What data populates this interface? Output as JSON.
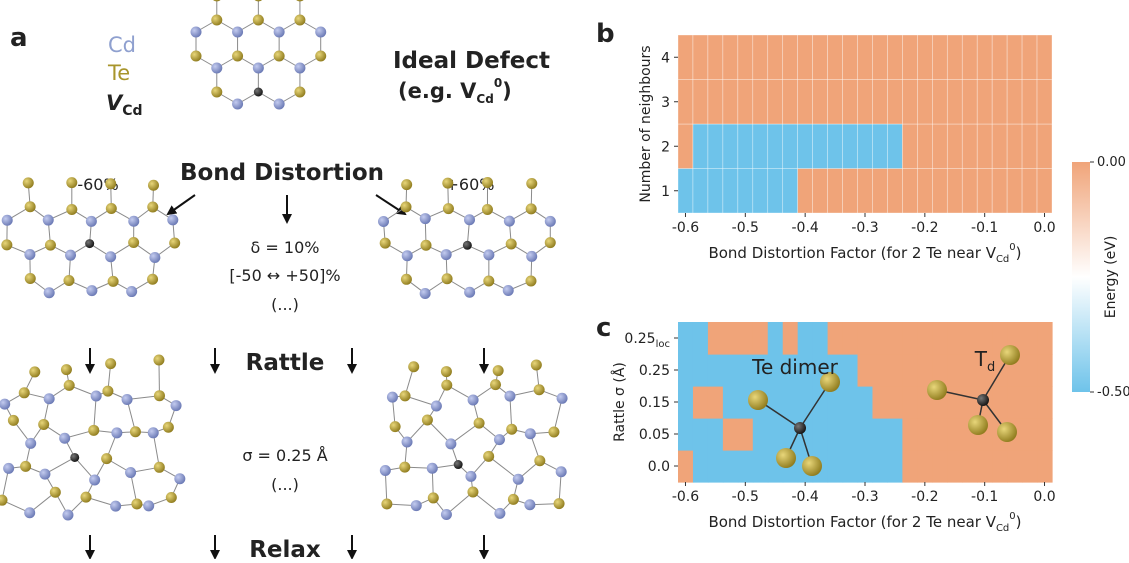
{
  "schematic": {
    "panel_label": "a",
    "legend": {
      "cd": "Cd",
      "te": "Te",
      "vacancy": "V",
      "vacancy_sub": "Cd"
    },
    "ideal": "Ideal Defect",
    "example": {
      "text": "(e.g. V",
      "sub": "Cd",
      "sup": "0",
      "end": ")"
    },
    "step1": "Bond Distortion",
    "minus": "-60%",
    "plus": "+60%",
    "step1_notes": [
      "δ = 10%",
      "[-50 ↔ +50]%",
      "(...)"
    ],
    "step2": "Rattle",
    "step2_notes": [
      "σ = 0.25 Å",
      "(...)"
    ],
    "step3": "Relax"
  },
  "colorbar": {
    "label": "Energy (eV)",
    "zlim": [
      -0.5,
      0
    ],
    "colors": [
      "#6ec3ea",
      "#ffffff",
      "#f0a479"
    ],
    "ticks": [
      {
        "value": 0,
        "label": "0.00"
      },
      {
        "value": -0.5,
        "label": "-0.50"
      }
    ]
  },
  "chart_data": [
    {
      "type": "heatmap",
      "panel_label": "b",
      "ylabel": "Number of neighbours",
      "xlabel": {
        "text": "Bond Distortion Factor (for 2 Te near V",
        "sub": "Cd",
        "sup": "0",
        "end": ")"
      },
      "x": [
        -0.6,
        -0.575,
        -0.55,
        -0.525,
        -0.5,
        -0.475,
        -0.45,
        -0.425,
        -0.4,
        -0.375,
        -0.35,
        -0.325,
        -0.3,
        -0.275,
        -0.25,
        -0.225,
        -0.2,
        -0.175,
        -0.15,
        -0.125,
        -0.1,
        -0.075,
        -0.05,
        -0.025,
        0.0
      ],
      "xlim": [
        -0.6125,
        0.0125
      ],
      "xticks": [
        -0.6,
        -0.5,
        -0.4,
        -0.3,
        -0.2,
        -0.1,
        {
          "value": 0,
          "label": "0.0"
        }
      ],
      "y": [
        1,
        2,
        3,
        4
      ],
      "ylim": [
        0.5,
        4.5
      ],
      "yticks": [
        1,
        2,
        3,
        4
      ],
      "grid": true,
      "z": [
        [
          -0.5,
          -0.5,
          -0.5,
          -0.5,
          -0.5,
          -0.5,
          -0.5,
          -0.5,
          0,
          0,
          0,
          0,
          0,
          0,
          0,
          0,
          0,
          0,
          0,
          0,
          0,
          0,
          0,
          0,
          0
        ],
        [
          0,
          -0.5,
          -0.5,
          -0.5,
          -0.5,
          -0.5,
          -0.5,
          -0.5,
          -0.5,
          -0.5,
          -0.5,
          -0.5,
          -0.5,
          -0.5,
          -0.5,
          0,
          0,
          0,
          0,
          0,
          0,
          0,
          0,
          0,
          0
        ],
        [
          0,
          0,
          0,
          0,
          0,
          0,
          0,
          0,
          0,
          0,
          0,
          0,
          0,
          0,
          0,
          0,
          0,
          0,
          0,
          0,
          0,
          0,
          0,
          0,
          0
        ],
        [
          0,
          0,
          0,
          0,
          0,
          0,
          0,
          0,
          0,
          0,
          0,
          0,
          0,
          0,
          0,
          0,
          0,
          0,
          0,
          0,
          0,
          0,
          0,
          0,
          0
        ]
      ]
    },
    {
      "type": "heatmap",
      "panel_label": "c",
      "ylabel": "Rattle σ (Å)",
      "xlabel": {
        "text": "Bond Distortion Factor (for 2 Te near V",
        "sub": "Cd",
        "sup": "0",
        "end": ")"
      },
      "x": [
        -0.6,
        -0.575,
        -0.55,
        -0.525,
        -0.5,
        -0.475,
        -0.45,
        -0.425,
        -0.4,
        -0.375,
        -0.35,
        -0.325,
        -0.3,
        -0.275,
        -0.25,
        -0.225,
        -0.2,
        -0.175,
        -0.15,
        -0.125,
        -0.1,
        -0.075,
        -0.05,
        -0.025,
        0.0
      ],
      "xlim": [
        -0.6125,
        0.0125
      ],
      "xticks": [
        -0.6,
        -0.5,
        -0.4,
        -0.3,
        -0.2,
        -0.1,
        {
          "value": 0,
          "label": "0.0"
        }
      ],
      "y_categories": [
        "0.0",
        "0.05",
        "0.15",
        "0.25",
        {
          "label": "0.25",
          "sub": "loc"
        }
      ],
      "grid": false,
      "z": [
        [
          0,
          -0.5,
          -0.5,
          -0.5,
          -0.5,
          -0.5,
          -0.5,
          -0.5,
          -0.5,
          -0.5,
          -0.5,
          -0.5,
          -0.5,
          -0.5,
          -0.5,
          0,
          0,
          0,
          0,
          0,
          0,
          0,
          0,
          0,
          0
        ],
        [
          -0.5,
          -0.5,
          -0.5,
          0,
          0,
          -0.5,
          -0.5,
          -0.5,
          -0.5,
          -0.5,
          -0.5,
          -0.5,
          -0.5,
          -0.5,
          -0.5,
          0,
          0,
          0,
          0,
          0,
          0,
          0,
          0,
          0,
          0
        ],
        [
          -0.5,
          0,
          0,
          -0.5,
          -0.5,
          -0.5,
          -0.5,
          -0.5,
          -0.5,
          -0.5,
          -0.5,
          -0.5,
          -0.5,
          0,
          0,
          0,
          0,
          0,
          0,
          0,
          0,
          0,
          0,
          0,
          0
        ],
        [
          -0.5,
          -0.5,
          -0.5,
          -0.5,
          -0.5,
          -0.5,
          -0.5,
          -0.5,
          -0.5,
          -0.5,
          -0.5,
          -0.5,
          0,
          0,
          0,
          0,
          0,
          0,
          0,
          0,
          0,
          0,
          0,
          0,
          0
        ],
        [
          -0.5,
          -0.5,
          0,
          0,
          0,
          0,
          -0.5,
          0,
          -0.5,
          -0.5,
          0,
          0,
          0,
          0,
          0,
          0,
          0,
          0,
          0,
          0,
          0,
          0,
          0,
          0,
          0
        ]
      ],
      "annotations": [
        {
          "text": "Te dimer"
        },
        {
          "text": "T",
          "sub": "d"
        }
      ]
    }
  ]
}
